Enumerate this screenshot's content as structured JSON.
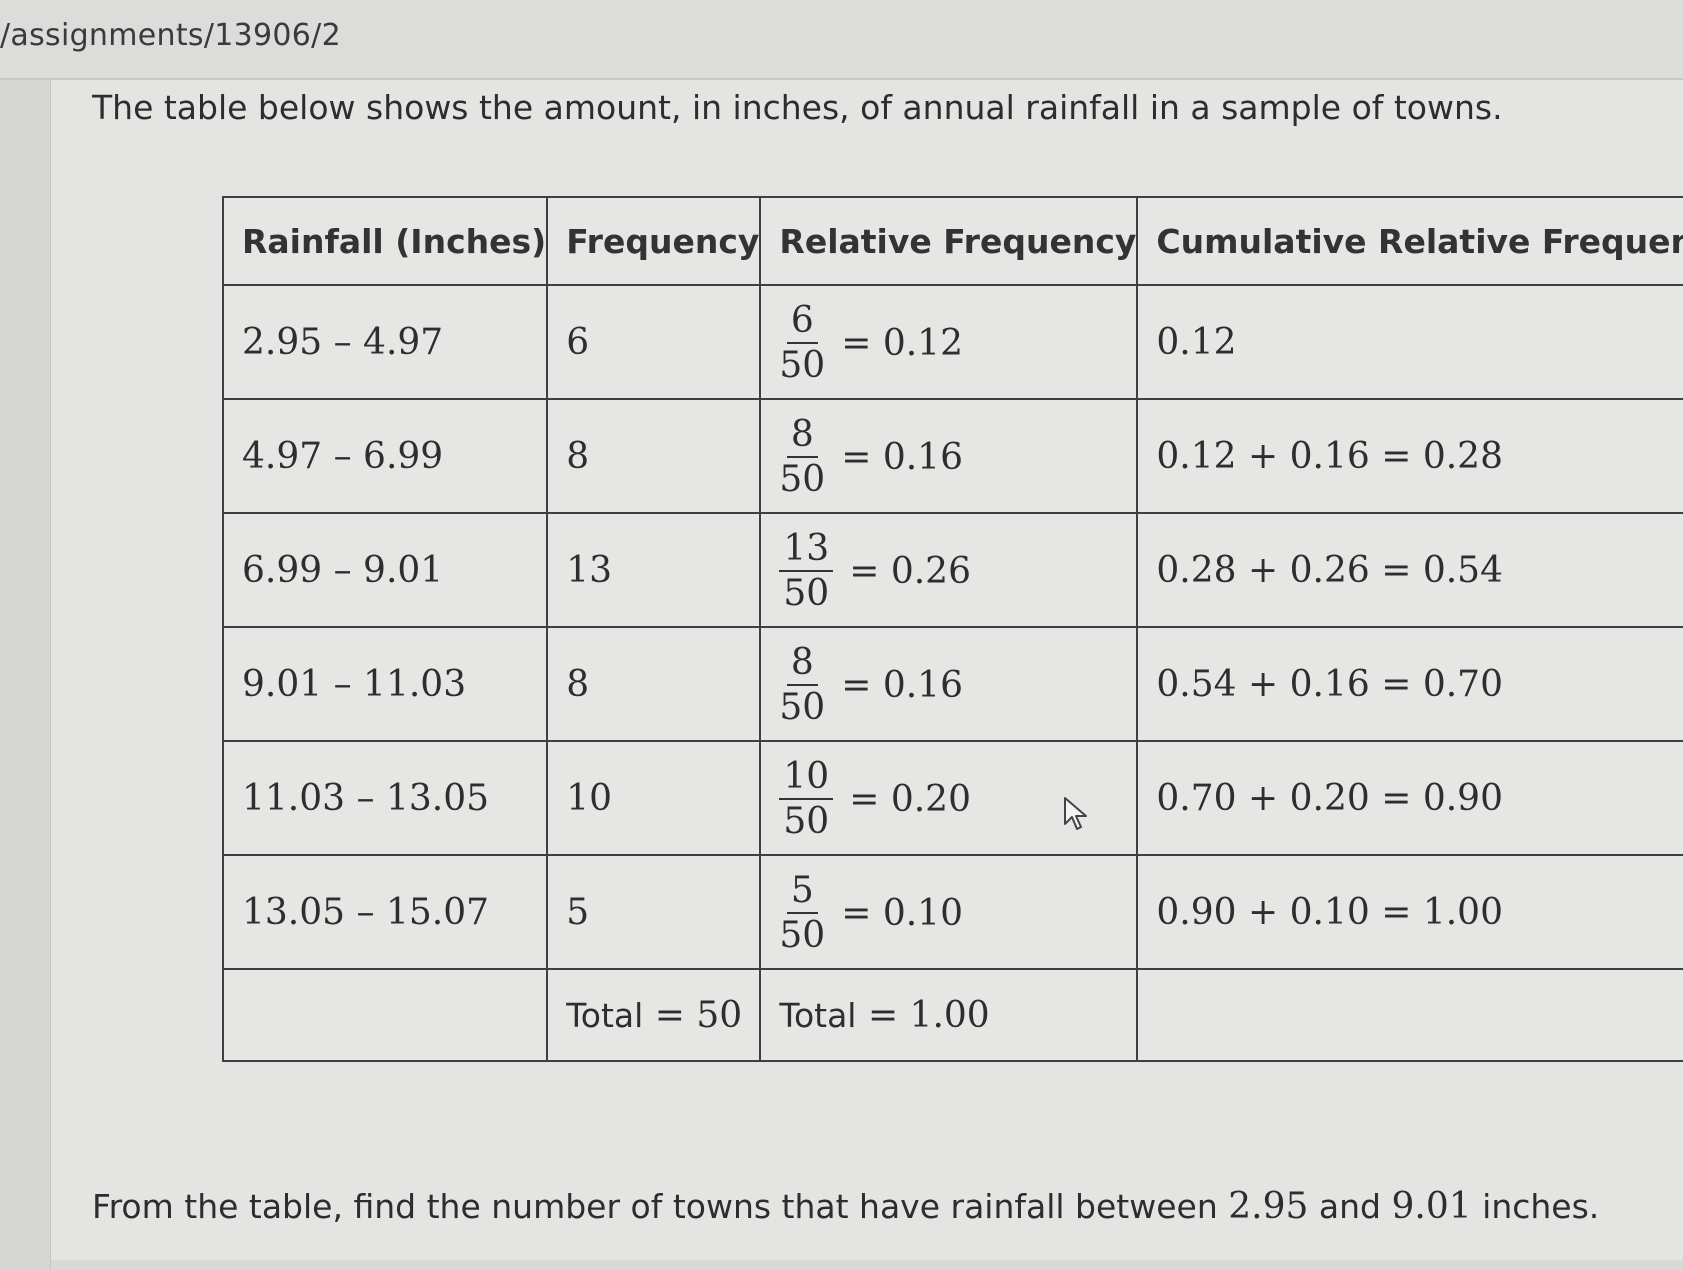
{
  "url": "/assignments/13906/2",
  "intro_text": "The table below shows the amount, in inches, of annual rainfall in a sample of towns.",
  "table": {
    "headers": [
      "Rainfall (Inches)",
      "Frequency",
      "Relative Frequency",
      "Cumulative Relative Frequency"
    ],
    "rows": [
      {
        "rainfall": "2.95 – 4.97",
        "frequency": "6",
        "rf_num": "6",
        "rf_den": "50",
        "rf_value": "= 0.12",
        "cumulative": "0.12"
      },
      {
        "rainfall": "4.97 – 6.99",
        "frequency": "8",
        "rf_num": "8",
        "rf_den": "50",
        "rf_value": "= 0.16",
        "cumulative": "0.12 + 0.16 = 0.28"
      },
      {
        "rainfall": "6.99 – 9.01",
        "frequency": "13",
        "rf_num": "13",
        "rf_den": "50",
        "rf_value": "= 0.26",
        "cumulative": "0.28 + 0.26 = 0.54"
      },
      {
        "rainfall": "9.01 – 11.03",
        "frequency": "8",
        "rf_num": "8",
        "rf_den": "50",
        "rf_value": "= 0.16",
        "cumulative": "0.54 + 0.16 = 0.70"
      },
      {
        "rainfall": "11.03 – 13.05",
        "frequency": "10",
        "rf_num": "10",
        "rf_den": "50",
        "rf_value": "= 0.20",
        "cumulative": "0.70 + 0.20 = 0.90"
      },
      {
        "rainfall": "13.05 – 15.07",
        "frequency": "5",
        "rf_num": "5",
        "rf_den": "50",
        "rf_value": "= 0.10",
        "cumulative": "0.90 + 0.10 = 1.00"
      }
    ],
    "total_frequency_label": "Total",
    "total_frequency_value": "= 50",
    "total_relative_label": "Total",
    "total_relative_value": "= 1.00"
  },
  "question": {
    "before": "From the table, find the number of towns that have rainfall between",
    "low": "2.95",
    "middle": "and",
    "high": "9.01",
    "after": "inches."
  },
  "icons": {
    "cursor": "mouse-pointer-icon"
  }
}
